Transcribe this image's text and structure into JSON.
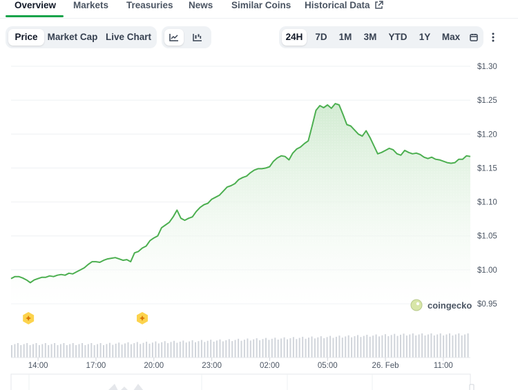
{
  "tabs": [
    {
      "label": "Overview"
    },
    {
      "label": "Markets"
    },
    {
      "label": "Treasuries"
    },
    {
      "label": "News"
    },
    {
      "label": "Similar Coins"
    },
    {
      "label": "Historical Data"
    }
  ],
  "view_toggle": {
    "price": "Price",
    "market_cap": "Market Cap",
    "live_chart": "Live Chart",
    "selected": "Price"
  },
  "chart_style": {
    "line_icon": "line-chart-icon",
    "candle_icon": "candlestick-icon",
    "selected": "line"
  },
  "ranges": {
    "options": [
      "24H",
      "7D",
      "1M",
      "3M",
      "YTD",
      "1Y",
      "Max"
    ],
    "selected": "24H"
  },
  "toolbar_icons": {
    "calendar": "calendar-icon",
    "more": "more-vertical-icon"
  },
  "watermark": {
    "text": "coingecko",
    "icon": "coingecko-logo-icon"
  },
  "colors": {
    "line": "#4caf50",
    "area_top": "#cfeacf",
    "volume": "#d1d5db",
    "event_marker": "#fcd34d",
    "active_tab": "#16a34a"
  },
  "chart_data": {
    "type": "area",
    "title": "",
    "xlabel": "",
    "ylabel": "",
    "y_unit_prefix": "$",
    "ylim": [
      0.95,
      1.3
    ],
    "y_ticks": [
      "$1.30",
      "$1.25",
      "$1.20",
      "$1.15",
      "$1.10",
      "$1.05",
      "$1.00",
      "$0.95"
    ],
    "y_tick_values": [
      1.3,
      1.25,
      1.2,
      1.15,
      1.1,
      1.05,
      1.0,
      0.95
    ],
    "x_ticks": [
      "14:00",
      "17:00",
      "20:00",
      "23:00",
      "02:00",
      "05:00",
      "26. Feb",
      "11:00"
    ],
    "x_tick_hours": [
      14,
      17,
      20,
      23,
      26,
      29,
      32,
      35
    ],
    "xlim_hours": [
      12.6,
      36.4
    ],
    "grid": true,
    "event_marker_hours": [
      13.5,
      19.4
    ],
    "series": [
      {
        "x": [
          12.6,
          12.8,
          13.0,
          13.2,
          13.4,
          13.6,
          13.8,
          14.0,
          14.2,
          14.4,
          14.6,
          14.8,
          15.0,
          15.2,
          15.4,
          15.6,
          15.8,
          16.0,
          16.2,
          16.4,
          16.6,
          16.8,
          17.0,
          17.2,
          17.4,
          17.6,
          17.8,
          18.0,
          18.2,
          18.4,
          18.6,
          18.8,
          19.0,
          19.2,
          19.4,
          19.6,
          19.8,
          20.0,
          20.2,
          20.4,
          20.6,
          20.8,
          21.0,
          21.2,
          21.4,
          21.6,
          21.8,
          22.0,
          22.2,
          22.4,
          22.6,
          22.8,
          23.0,
          23.2,
          23.4,
          23.6,
          23.8,
          24.0,
          24.2,
          24.4,
          24.6,
          24.8,
          25.0,
          25.2,
          25.4,
          25.6,
          25.8,
          26.0,
          26.2,
          26.4,
          26.6,
          26.8,
          27.0,
          27.2,
          27.4,
          27.6,
          27.8,
          28.0,
          28.2,
          28.4,
          28.6,
          28.8,
          29.0,
          29.2,
          29.4,
          29.6,
          29.8,
          30.0,
          30.2,
          30.4,
          30.6,
          30.8,
          31.0,
          31.2,
          31.4,
          31.6,
          31.8,
          32.0,
          32.2,
          32.4,
          32.6,
          32.8,
          33.0,
          33.2,
          33.4,
          33.6,
          33.8,
          34.0,
          34.2,
          34.4,
          34.6,
          34.8,
          35.0,
          35.2,
          35.4,
          35.6,
          35.8,
          36.0,
          36.2,
          36.4
        ],
        "y": [
          0.987,
          0.99,
          0.99,
          0.988,
          0.985,
          0.981,
          0.985,
          0.987,
          0.989,
          0.989,
          0.991,
          0.99,
          0.992,
          0.993,
          0.992,
          0.995,
          0.994,
          0.997,
          1.0,
          1.003,
          1.008,
          1.012,
          1.012,
          1.011,
          1.014,
          1.016,
          1.017,
          1.018,
          1.016,
          1.014,
          1.015,
          1.012,
          1.025,
          1.027,
          1.032,
          1.035,
          1.043,
          1.047,
          1.05,
          1.062,
          1.066,
          1.07,
          1.078,
          1.088,
          1.076,
          1.073,
          1.076,
          1.078,
          1.086,
          1.092,
          1.096,
          1.098,
          1.104,
          1.107,
          1.11,
          1.116,
          1.122,
          1.124,
          1.127,
          1.133,
          1.136,
          1.138,
          1.143,
          1.147,
          1.149,
          1.149,
          1.15,
          1.152,
          1.16,
          1.165,
          1.168,
          1.167,
          1.162,
          1.172,
          1.178,
          1.181,
          1.186,
          1.19,
          1.212,
          1.235,
          1.242,
          1.239,
          1.243,
          1.238,
          1.245,
          1.243,
          1.229,
          1.214,
          1.212,
          1.206,
          1.2,
          1.197,
          1.205,
          1.195,
          1.183,
          1.171,
          1.173,
          1.176,
          1.179,
          1.177,
          1.171,
          1.169,
          1.176,
          1.173,
          1.171,
          1.172,
          1.17,
          1.166,
          1.164,
          1.166,
          1.163,
          1.162,
          1.16,
          1.158,
          1.157,
          1.158,
          1.163,
          1.163,
          1.168,
          1.167
        ]
      }
    ]
  }
}
